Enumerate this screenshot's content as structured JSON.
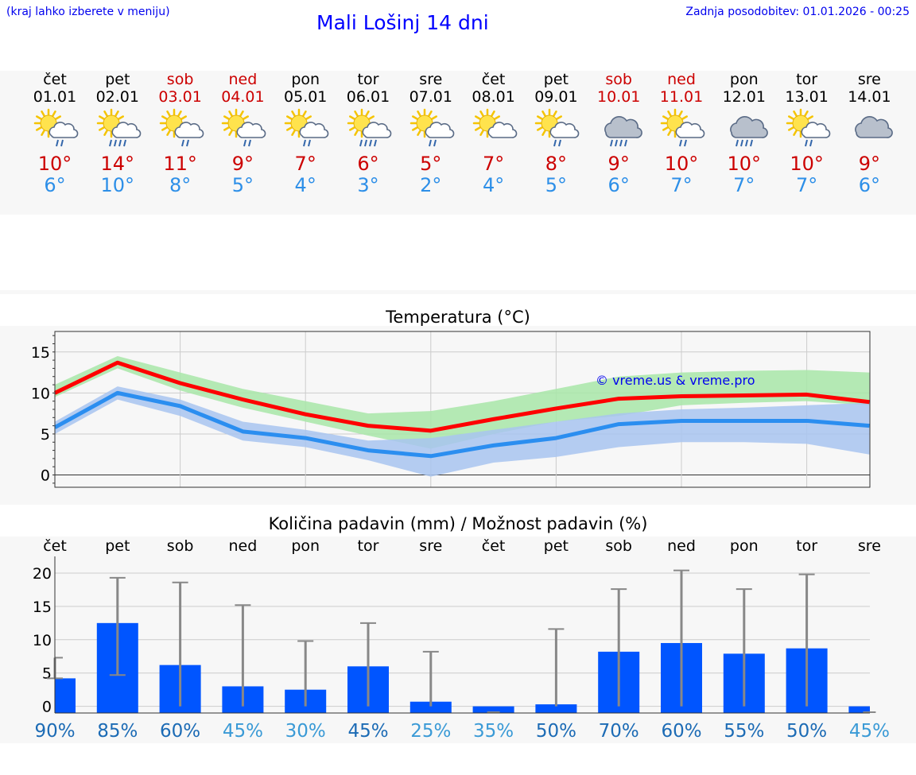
{
  "header": {
    "menu_hint": "(kraj lahko izberete v meniju)",
    "title": "Mali Lošinj 14 dni",
    "updated": "Zadnja posodobitev: 01.01.2026 - 00:25"
  },
  "days": [
    {
      "name": "čet",
      "date": "01.01",
      "weekend": false,
      "icon": "sun-cloud-rain-icon",
      "max": "10°",
      "min": "6°"
    },
    {
      "name": "pet",
      "date": "02.01",
      "weekend": false,
      "icon": "sun-cloud-heavy-rain-icon",
      "max": "14°",
      "min": "10°"
    },
    {
      "name": "sob",
      "date": "03.01",
      "weekend": true,
      "icon": "sun-cloud-rain-icon",
      "max": "11°",
      "min": "8°"
    },
    {
      "name": "ned",
      "date": "04.01",
      "weekend": true,
      "icon": "sun-cloud-rain-icon",
      "max": "9°",
      "min": "5°"
    },
    {
      "name": "pon",
      "date": "05.01",
      "weekend": false,
      "icon": "sun-cloud-light-rain-icon",
      "max": "7°",
      "min": "4°"
    },
    {
      "name": "tor",
      "date": "06.01",
      "weekend": false,
      "icon": "sun-cloud-heavy-rain-icon",
      "max": "6°",
      "min": "3°"
    },
    {
      "name": "sre",
      "date": "07.01",
      "weekend": false,
      "icon": "sun-cloud-light-rain-icon",
      "max": "5°",
      "min": "2°"
    },
    {
      "name": "čet",
      "date": "08.01",
      "weekend": false,
      "icon": "sun-cloud-icon",
      "max": "7°",
      "min": "4°"
    },
    {
      "name": "pet",
      "date": "09.01",
      "weekend": false,
      "icon": "sun-cloud-light-rain-icon",
      "max": "8°",
      "min": "5°"
    },
    {
      "name": "sob",
      "date": "10.01",
      "weekend": true,
      "icon": "cloud-heavy-rain-icon",
      "max": "9°",
      "min": "6°"
    },
    {
      "name": "ned",
      "date": "11.01",
      "weekend": true,
      "icon": "sun-cloud-light-rain-icon",
      "max": "10°",
      "min": "7°"
    },
    {
      "name": "pon",
      "date": "12.01",
      "weekend": false,
      "icon": "cloud-heavy-rain-icon",
      "max": "10°",
      "min": "7°"
    },
    {
      "name": "tor",
      "date": "13.01",
      "weekend": false,
      "icon": "sun-cloud-light-rain-icon",
      "max": "10°",
      "min": "7°"
    },
    {
      "name": "sre",
      "date": "14.01",
      "weekend": false,
      "icon": "overcast-icon",
      "max": "9°",
      "min": "6°"
    }
  ],
  "chart_data": [
    {
      "type": "line",
      "title": "Temperatura (°C)",
      "watermark": "© vreme.us & vreme.pro",
      "ylim": [
        -1.5,
        17.5
      ],
      "yticks": [
        0,
        5,
        10,
        15
      ],
      "x": [
        1,
        2,
        3,
        4,
        5,
        6,
        7,
        8,
        9,
        10,
        11,
        12,
        13,
        14
      ],
      "series": [
        {
          "name": "max",
          "color": "#ff0000",
          "values": [
            10,
            13.7,
            11.2,
            9.2,
            7.4,
            6.0,
            5.4,
            6.8,
            8.1,
            9.3,
            9.6,
            9.7,
            9.8,
            8.9
          ]
        },
        {
          "name": "min",
          "color": "#2b8ef0",
          "values": [
            5.8,
            10,
            8.4,
            5.3,
            4.5,
            3.0,
            2.3,
            3.6,
            4.5,
            6.2,
            6.6,
            6.6,
            6.6,
            6.0
          ]
        }
      ],
      "bands": [
        {
          "name": "max-range",
          "color": "#a8e6a8",
          "upper": [
            11,
            14.5,
            12.5,
            10.5,
            9,
            7.5,
            7.8,
            9,
            10.5,
            12,
            12.5,
            12.7,
            12.8,
            12.5
          ],
          "lower": [
            9.5,
            13,
            10.3,
            8.2,
            6.5,
            4.8,
            3.2,
            5,
            6.5,
            7.2,
            8.5,
            8.8,
            9,
            8.5
          ]
        },
        {
          "name": "min-range",
          "color": "#a8c4f0",
          "upper": [
            6.5,
            10.8,
            9.2,
            6.5,
            5.5,
            4.2,
            4.5,
            5.5,
            6.5,
            7.5,
            8,
            8.2,
            8.5,
            8.8
          ],
          "lower": [
            5,
            9.2,
            7.2,
            4.2,
            3.4,
            1.8,
            -0.2,
            1.5,
            2.2,
            3.4,
            4.0,
            4.0,
            3.8,
            2.5
          ]
        }
      ]
    },
    {
      "type": "bar",
      "title": "Količina padavin (mm) / Možnost padavin (%)",
      "categories": [
        "čet",
        "pet",
        "sob",
        "ned",
        "pon",
        "tor",
        "sre",
        "čet",
        "pet",
        "sob",
        "ned",
        "pon",
        "tor",
        "sre"
      ],
      "values": [
        4.2,
        12.5,
        6.2,
        3.0,
        2.5,
        6.0,
        0.7,
        0,
        0.3,
        8.2,
        9.5,
        7.9,
        8.7,
        0
      ],
      "error_high": [
        7.3,
        19.3,
        18.6,
        15.2,
        9.8,
        12.5,
        8.2,
        0,
        11.6,
        17.6,
        20.4,
        17.6,
        19.8,
        0
      ],
      "error_low": [
        4.2,
        4.7,
        0,
        0,
        0,
        0,
        0,
        0,
        0,
        0,
        0,
        0,
        0,
        0
      ],
      "ylim": [
        -1,
        22.5
      ],
      "yticks": [
        0,
        5,
        10,
        15,
        20
      ],
      "probability": [
        "90%",
        "85%",
        "60%",
        "45%",
        "30%",
        "45%",
        "25%",
        "35%",
        "50%",
        "70%",
        "60%",
        "55%",
        "50%",
        "45%"
      ],
      "prob_colors": [
        "#1c6bb5",
        "#1c6bb5",
        "#1c6bb5",
        "#3a9ad6",
        "#3a9ad6",
        "#1c6bb5",
        "#3a9ad6",
        "#3a9ad6",
        "#1c6bb5",
        "#1c6bb5",
        "#1c6bb5",
        "#1c6bb5",
        "#1c6bb5",
        "#3a9ad6"
      ],
      "bar_color": "#0055ff"
    }
  ]
}
